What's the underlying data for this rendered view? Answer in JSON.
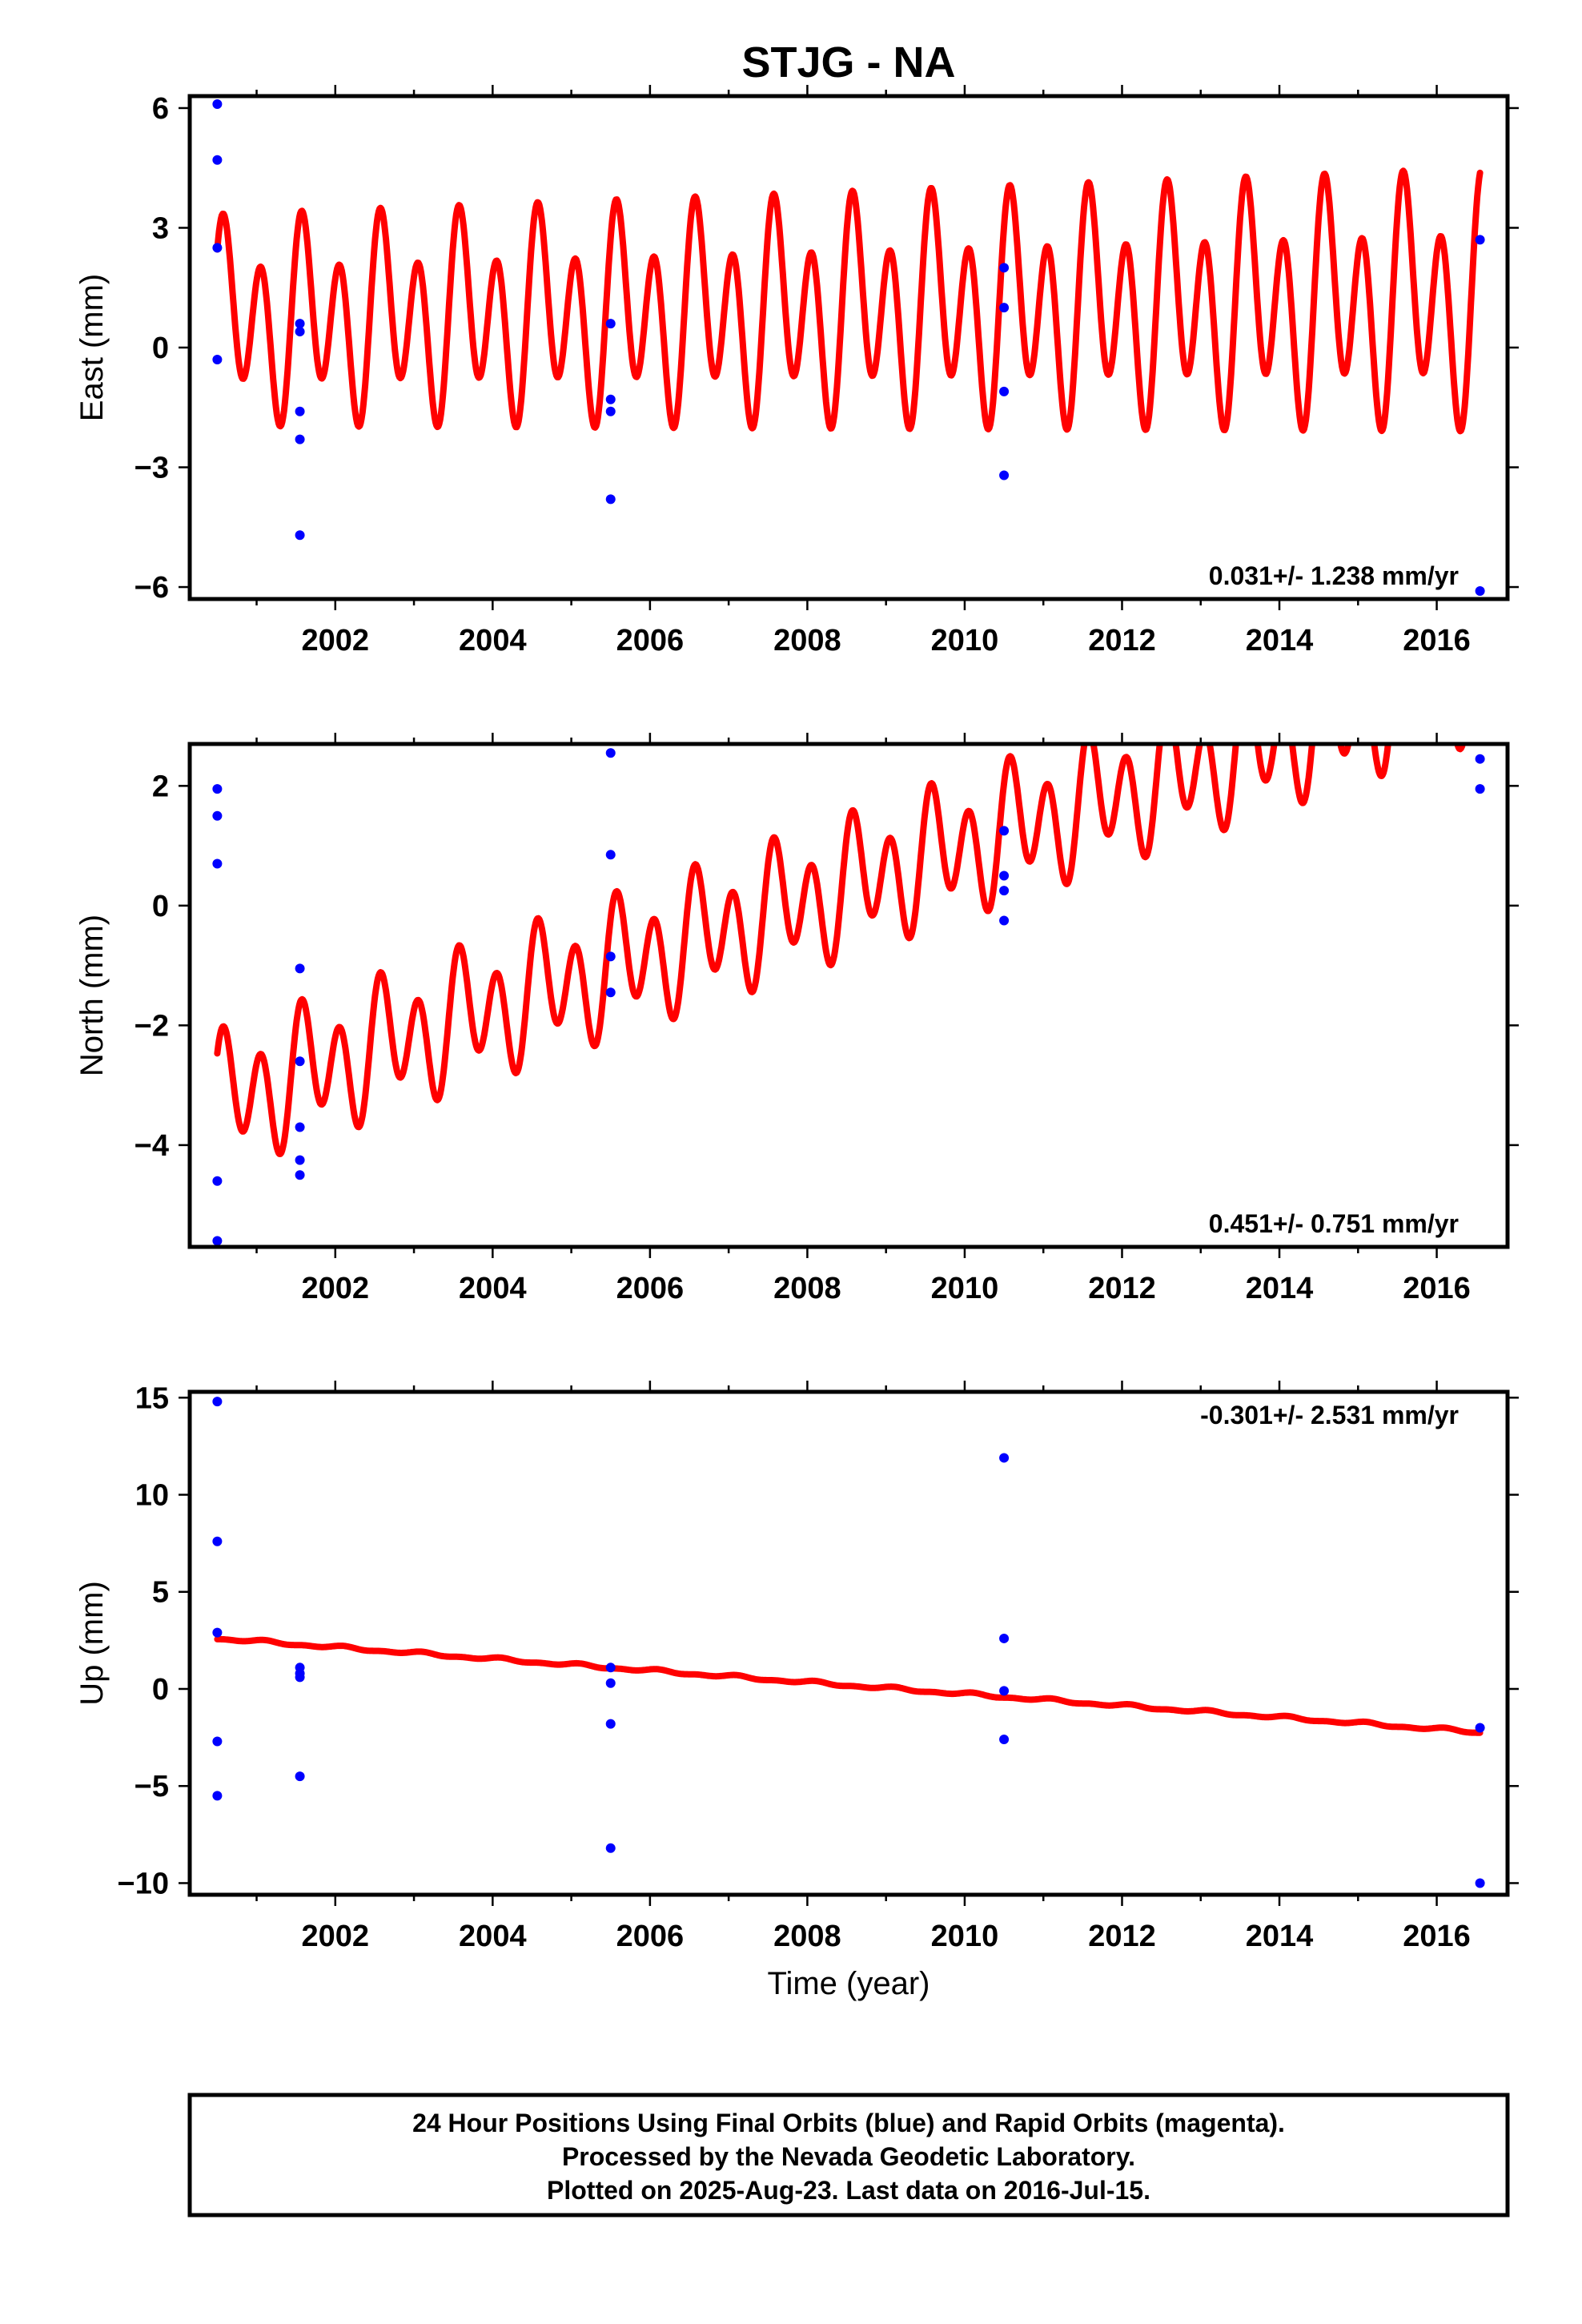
{
  "chart_data": {
    "type": "scatter",
    "title": "STJG - NA",
    "xlabel": "Time (year)",
    "xlim": [
      2000.15,
      2016.9
    ],
    "xticks": [
      2002,
      2004,
      2006,
      2008,
      2010,
      2012,
      2014,
      2016
    ],
    "colors": {
      "data": "#0000ff",
      "model": "#ff0000",
      "frame": "#000000"
    },
    "panels": [
      {
        "id": "east",
        "ylabel": "East (mm)",
        "ylim": [
          -6.3,
          6.3
        ],
        "yticks": [
          -6,
          -3,
          0,
          3,
          6
        ],
        "ytick_labels": [
          "−6",
          "−3",
          "0",
          "3",
          "6"
        ],
        "rate_text": "0.031+/- 1.238 mm/yr",
        "rate_position": "bottom-right",
        "series": [
          {
            "name": "Final Orbits",
            "x": [
              2000.5,
              2000.5,
              2000.5,
              2000.5,
              2001.55,
              2001.55,
              2001.55,
              2001.55,
              2001.55,
              2005.5,
              2005.5,
              2005.5,
              2005.5,
              2010.5,
              2010.5,
              2010.5,
              2010.5,
              2016.55,
              2016.55
            ],
            "y": [
              6.1,
              4.7,
              2.5,
              -0.3,
              0.6,
              0.4,
              -1.6,
              -2.3,
              -4.7,
              0.6,
              -1.3,
              -1.6,
              -3.8,
              2.0,
              1.0,
              -1.1,
              -3.2,
              2.7,
              -6.1
            ]
          }
        ],
        "model": {
          "x_start": 2000.5,
          "x_end": 2016.55,
          "offset": 0.9,
          "trend": 0.031,
          "t_ref": 2008.5,
          "annual_amp": 0.9,
          "annual_phase": 3.6,
          "semiannual_amp": 2.0,
          "semiannual_phase": 0.78,
          "amp_growth": 0.015
        }
      },
      {
        "id": "north",
        "ylabel": "North (mm)",
        "ylim": [
          -5.7,
          2.7
        ],
        "yticks": [
          -4,
          -2,
          0,
          2
        ],
        "ytick_labels": [
          "−4",
          "−2",
          "0",
          "2"
        ],
        "rate_text": "0.451+/- 0.751 mm/yr",
        "rate_position": "bottom-right",
        "series": [
          {
            "name": "Final Orbits",
            "x": [
              2000.5,
              2000.5,
              2000.5,
              2000.5,
              2000.5,
              2001.55,
              2001.55,
              2001.55,
              2001.55,
              2001.55,
              2005.5,
              2005.5,
              2005.5,
              2005.5,
              2010.5,
              2010.5,
              2010.5,
              2010.5,
              2016.55,
              2016.55
            ],
            "y": [
              1.95,
              1.5,
              0.7,
              -4.6,
              -5.6,
              -1.05,
              -2.6,
              -3.7,
              -4.25,
              -4.5,
              2.55,
              0.85,
              -0.85,
              -1.45,
              1.25,
              0.5,
              0.25,
              -0.25,
              2.45,
              1.95
            ]
          }
        ],
        "model": {
          "x_start": 2000.5,
          "x_end": 2016.55,
          "offset": -3.3,
          "trend": 0.451,
          "t_ref": 2000.5,
          "annual_amp": 0.45,
          "annual_phase": 3.6,
          "semiannual_amp": 0.9,
          "semiannual_phase": 0.78,
          "amp_growth": 0.0
        }
      },
      {
        "id": "up",
        "ylabel": "Up (mm)",
        "ylim": [
          -10.6,
          15.3
        ],
        "yticks": [
          -10,
          -5,
          0,
          5,
          10,
          15
        ],
        "ytick_labels": [
          "−10",
          "−5",
          "0",
          "5",
          "10",
          "15"
        ],
        "rate_text": "-0.301+/- 2.531 mm/yr",
        "rate_position": "top-right",
        "series": [
          {
            "name": "Final Orbits",
            "x": [
              2000.5,
              2000.5,
              2000.5,
              2000.5,
              2000.5,
              2001.55,
              2001.55,
              2001.55,
              2001.55,
              2005.5,
              2005.5,
              2005.5,
              2005.5,
              2010.5,
              2010.5,
              2010.5,
              2010.5,
              2016.55,
              2016.55
            ],
            "y": [
              14.8,
              7.6,
              2.9,
              -2.7,
              -5.5,
              1.1,
              0.8,
              0.6,
              -4.5,
              1.1,
              0.3,
              -1.8,
              -8.2,
              11.9,
              2.6,
              -0.1,
              -2.6,
              -2.0,
              -10.0
            ]
          }
        ],
        "model": {
          "x_start": 2000.5,
          "x_end": 2016.55,
          "offset": 2.6,
          "trend": -0.301,
          "t_ref": 2000.5,
          "annual_amp": 0.06,
          "annual_phase": 1.0,
          "semiannual_amp": 0.04,
          "semiannual_phase": 0.3,
          "amp_growth": 0.0
        }
      }
    ]
  },
  "caption": {
    "line1": "24 Hour Positions Using Final Orbits (blue) and Rapid Orbits (magenta).",
    "line2": "Processed by the Nevada Geodetic Laboratory.",
    "line3": "Plotted on 2025-Aug-23. Last data on 2016-Jul-15."
  }
}
